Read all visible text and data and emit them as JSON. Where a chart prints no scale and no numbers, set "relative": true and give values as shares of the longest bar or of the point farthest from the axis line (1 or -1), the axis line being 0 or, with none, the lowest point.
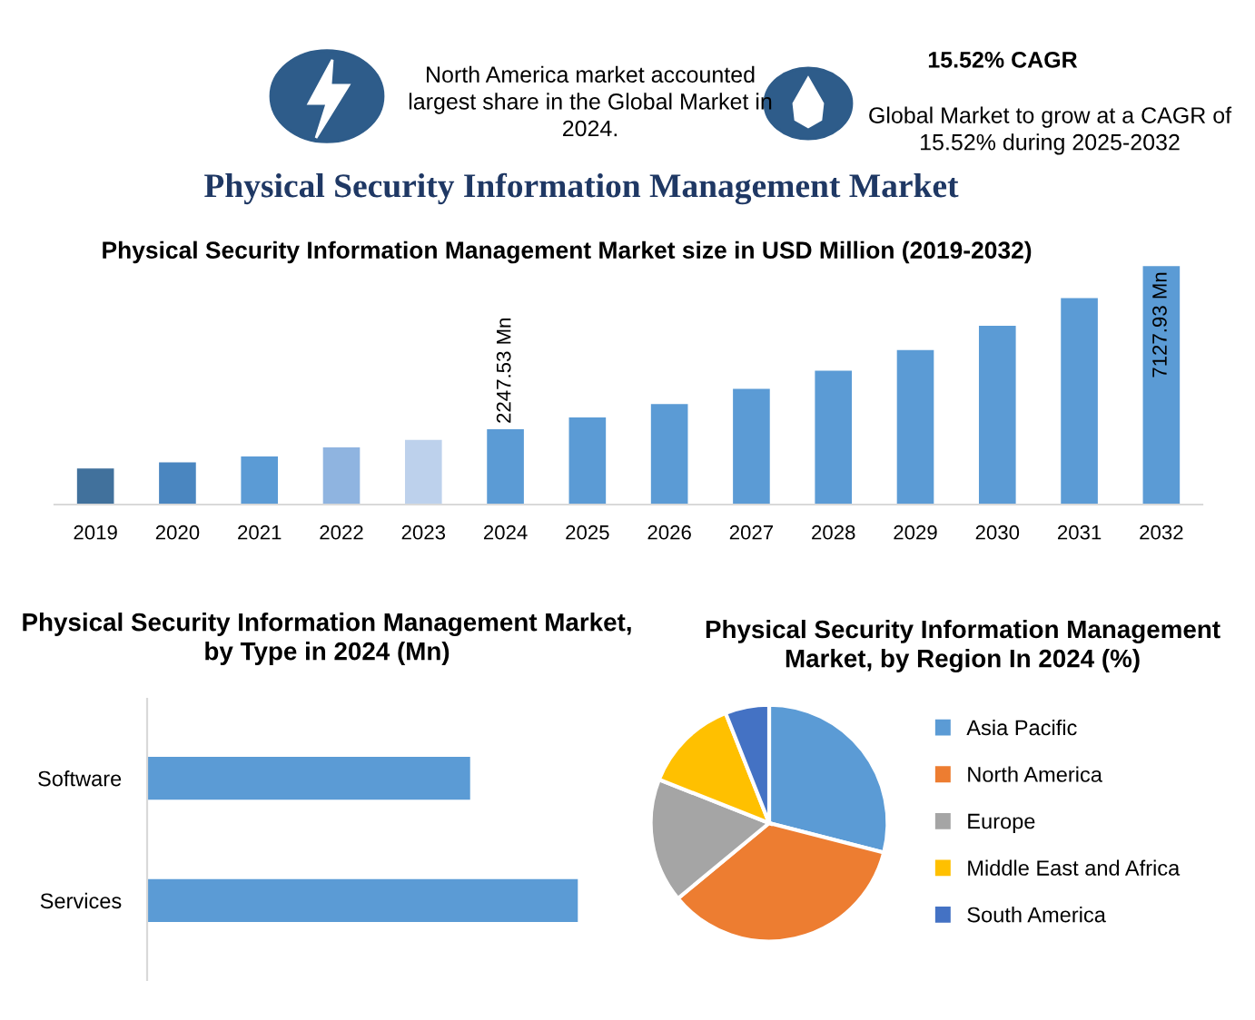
{
  "chart_data": [
    {
      "type": "other",
      "title": "Physical Security Information Management Market",
      "annotations": [
        "North America market accounted largest share in the Global Market in 2024.",
        "15.52% CAGR",
        "Global Market to grow at a CAGR of 15.52% during 2025-2032"
      ]
    },
    {
      "type": "bar",
      "title": "Physical Security Information Management Market size in USD Million (2019-2032)",
      "categories": [
        "2019",
        "2020",
        "2021",
        "2022",
        "2023",
        "2024",
        "2025",
        "2026",
        "2027",
        "2028",
        "2029",
        "2030",
        "2031",
        "2032"
      ],
      "values": [
        1080,
        1260,
        1440,
        1710,
        1930,
        2247.53,
        2600,
        3000,
        3460,
        4000,
        4620,
        5340,
        6170,
        7127.93
      ],
      "colors": [
        "#41719c",
        "#4a86c0",
        "#5b9bd5",
        "#8fb4e0",
        "#bdd1ec",
        "#5b9bd5",
        "#5b9bd5",
        "#5b9bd5",
        "#5b9bd5",
        "#5b9bd5",
        "#5b9bd5",
        "#5b9bd5",
        "#5b9bd5",
        "#5b9bd5"
      ],
      "value_labels": [
        null,
        null,
        null,
        null,
        null,
        "2247.53 Mn",
        null,
        null,
        null,
        null,
        null,
        null,
        null,
        "7127.93 Mn"
      ]
    },
    {
      "type": "bar",
      "orientation": "horizontal",
      "relative": true,
      "title": "Physical Security Information Management Market, by Type in 2024 (Mn)",
      "categories": [
        "Software",
        "Services"
      ],
      "values": [
        0.75,
        1
      ],
      "color": "#5b9bd5"
    },
    {
      "type": "pie",
      "title": "Physical Security Information Management Market, by Region In 2024 (%)",
      "legend": "right",
      "categories": [
        "Asia Pacific",
        "North America",
        "Europe",
        "Middle East and Africa",
        "South America"
      ],
      "values": [
        29,
        35,
        17,
        13,
        6
      ],
      "colors": [
        "#5b9bd5",
        "#ed7d31",
        "#a5a5a5",
        "#ffc000",
        "#4472c4"
      ]
    }
  ]
}
